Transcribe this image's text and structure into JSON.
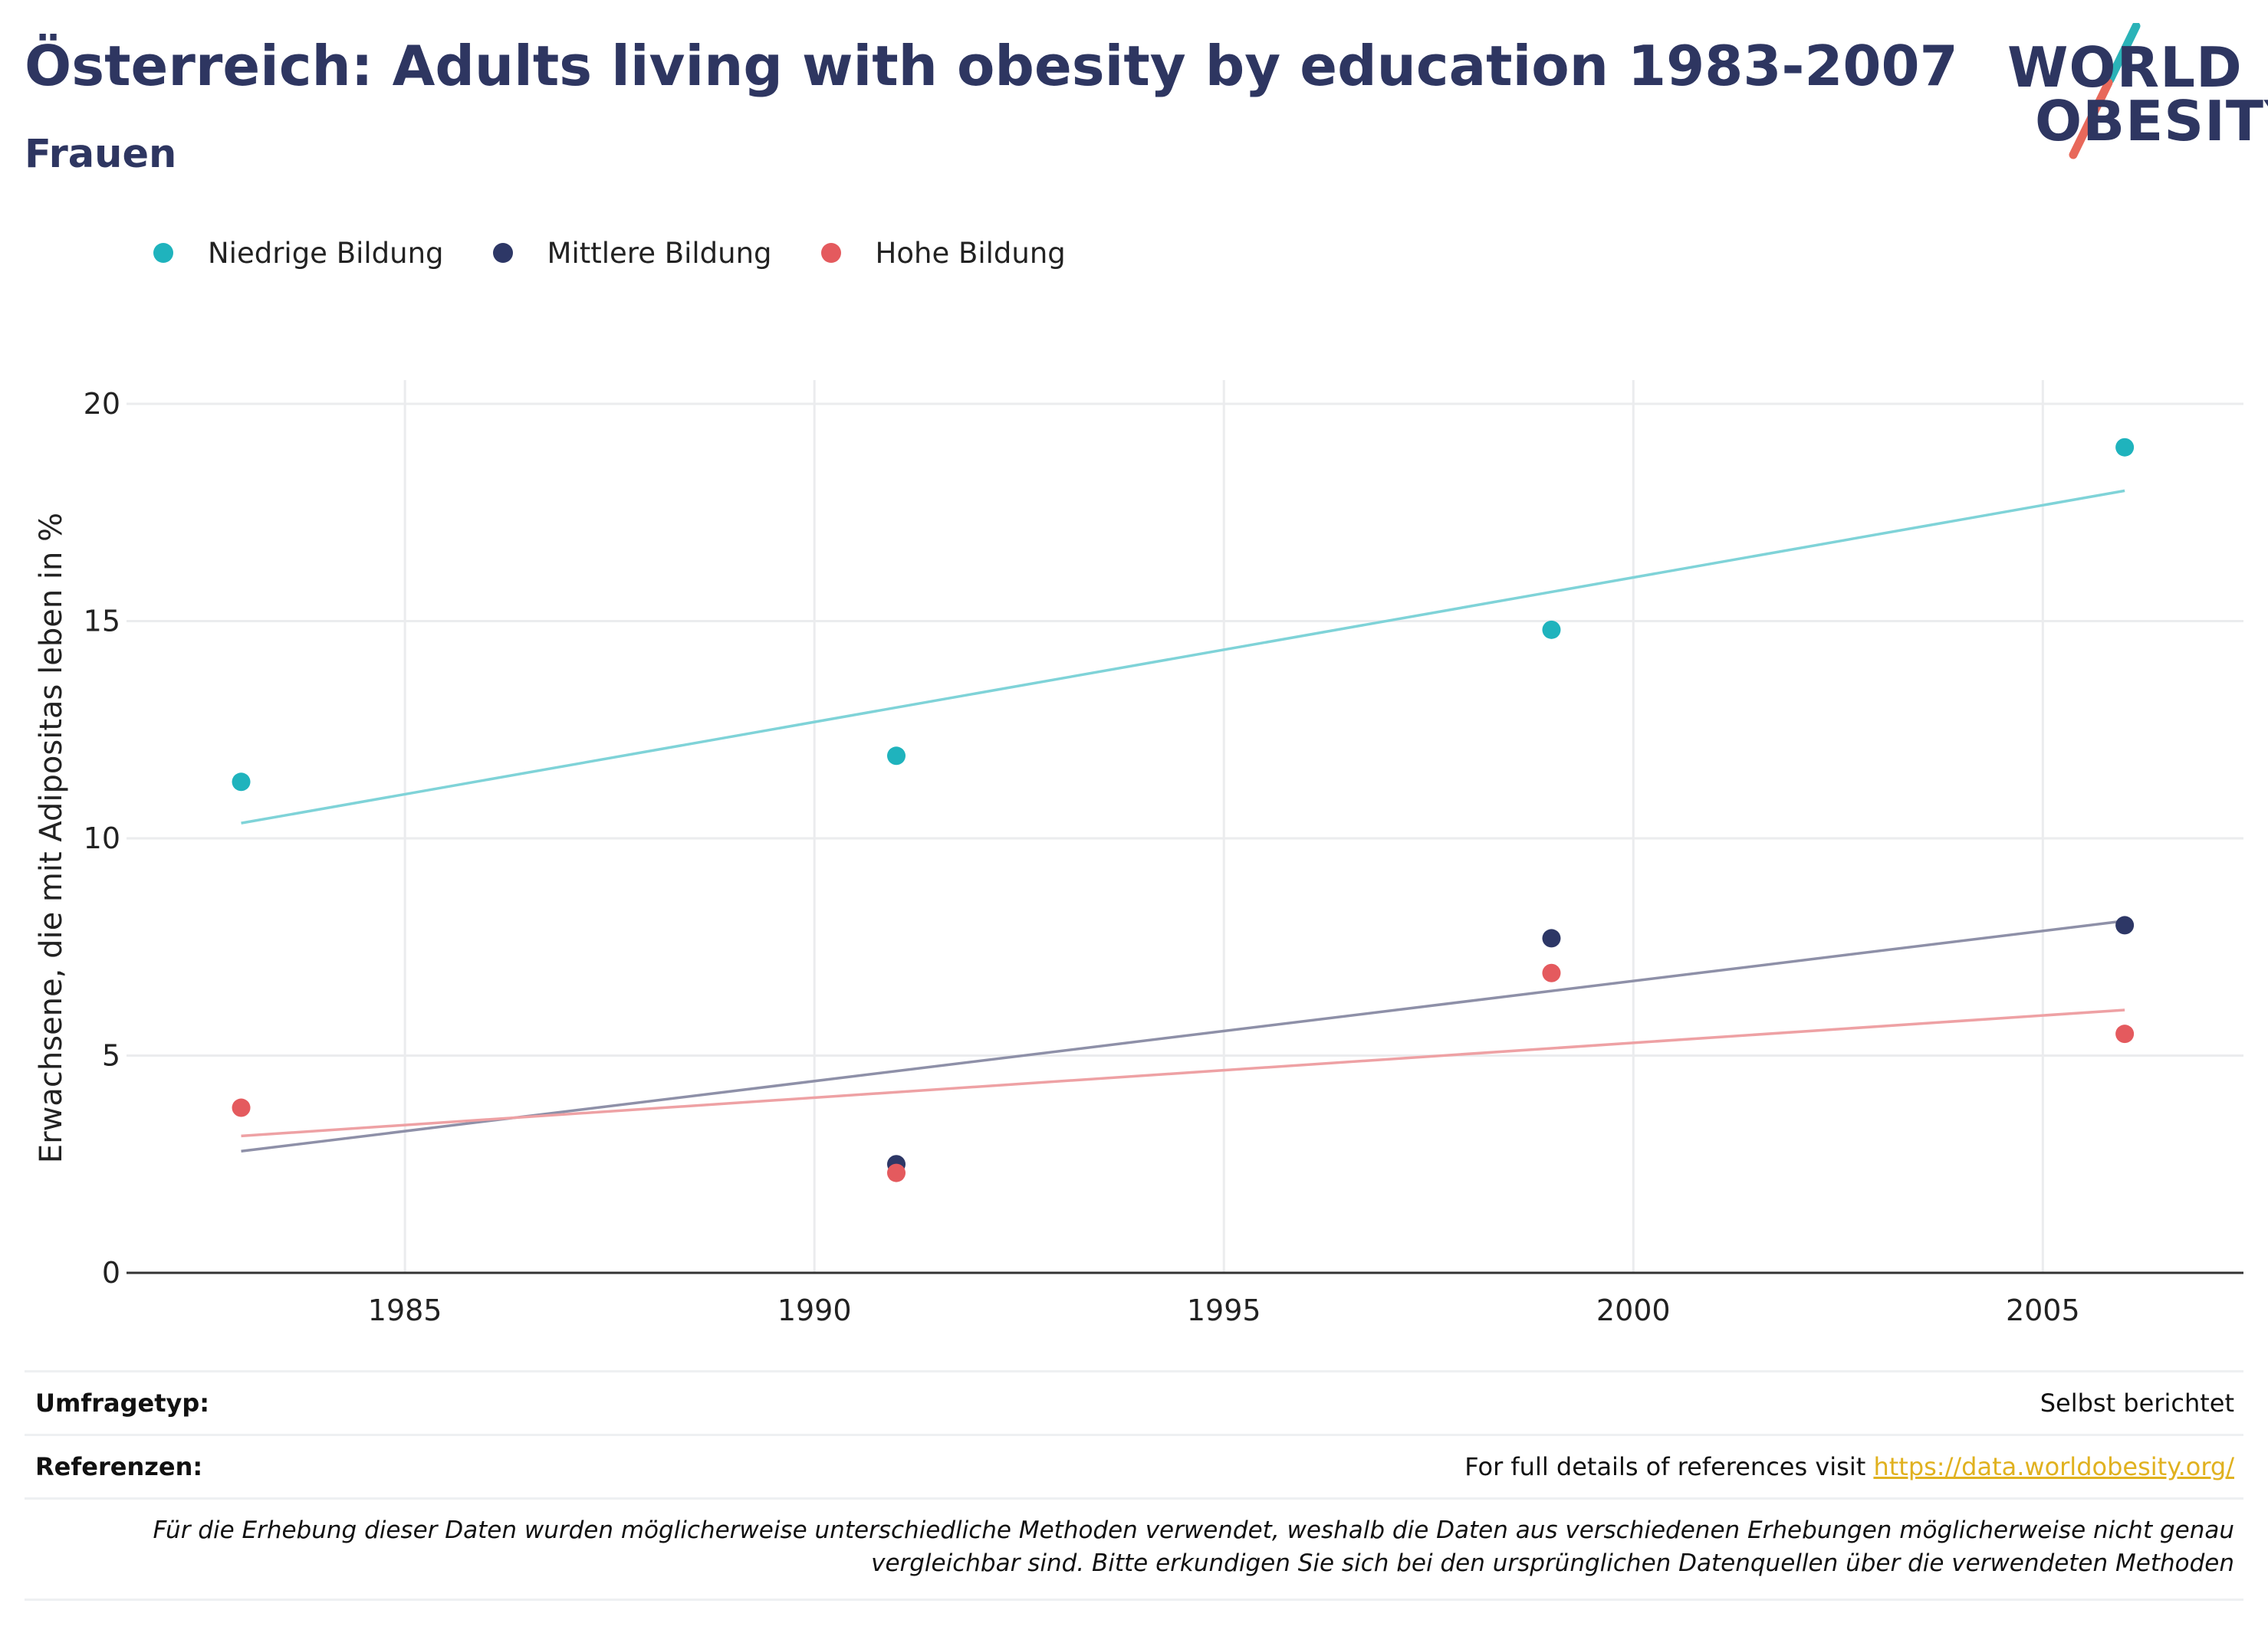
{
  "header": {
    "title": "Österreich: Adults living with obesity by education 1983-2007",
    "subtitle": "Frauen"
  },
  "logo": {
    "line1": "WORLD",
    "line2": "OBESITY",
    "slash_top_color": "#2bb3b8",
    "slash_bottom_color": "#e8685a"
  },
  "legend": {
    "items": [
      {
        "label": "Niedrige Bildung",
        "color": "#1fb3bd"
      },
      {
        "label": "Mittlere Bildung",
        "color": "#2d3766"
      },
      {
        "label": "Hohe Bildung",
        "color": "#e45a5e"
      }
    ]
  },
  "chart_data": {
    "type": "scatter",
    "ylabel": "Erwachsene, die mit Adipositas leben in %",
    "xlabel": "",
    "xlim": [
      1981.6,
      2007.45
    ],
    "ylim": [
      0,
      20.3
    ],
    "x_ticks": [
      1985,
      1990,
      1995,
      2000,
      2005
    ],
    "y_ticks": [
      0,
      5,
      10,
      15,
      20
    ],
    "grid": true,
    "legend_position": "top-left",
    "series": [
      {
        "name": "Niedrige Bildung",
        "color": "#1fb3bd",
        "trend_color": "#7fd3d8",
        "points": [
          [
            1983,
            11.3
          ],
          [
            1991,
            11.9
          ],
          [
            1999,
            14.8
          ],
          [
            2006,
            19.0
          ]
        ],
        "trend": [
          [
            1983,
            10.35
          ],
          [
            2006,
            18.0
          ]
        ]
      },
      {
        "name": "Mittlere Bildung",
        "color": "#2d3766",
        "trend_color": "#8e90a8",
        "points": [
          [
            1991,
            2.5
          ],
          [
            1999,
            7.7
          ],
          [
            2006,
            8.0
          ]
        ],
        "trend": [
          [
            1983,
            2.8
          ],
          [
            2006,
            8.1
          ]
        ]
      },
      {
        "name": "Hohe Bildung",
        "color": "#e45a5e",
        "trend_color": "#eea1a4",
        "points": [
          [
            1983,
            3.8
          ],
          [
            1991,
            2.3
          ],
          [
            1999,
            6.9
          ],
          [
            2006,
            5.5
          ]
        ],
        "trend": [
          [
            1983,
            3.15
          ],
          [
            2006,
            6.05
          ]
        ]
      }
    ]
  },
  "meta": {
    "survey_label": "Umfragetyp:",
    "survey_value": "Selbst berichtet",
    "ref_label": "Referenzen:",
    "ref_text": "For full details of references visit ",
    "ref_link": "https://data.worldobesity.org/",
    "note": "Für die Erhebung dieser Daten wurden möglicherweise unterschiedliche Methoden verwendet, weshalb die Daten aus verschiedenen Erhebungen möglicherweise nicht genau vergleichbar sind. Bitte erkundigen Sie sich bei den ursprünglichen Datenquellen über die verwendeten Methoden"
  }
}
